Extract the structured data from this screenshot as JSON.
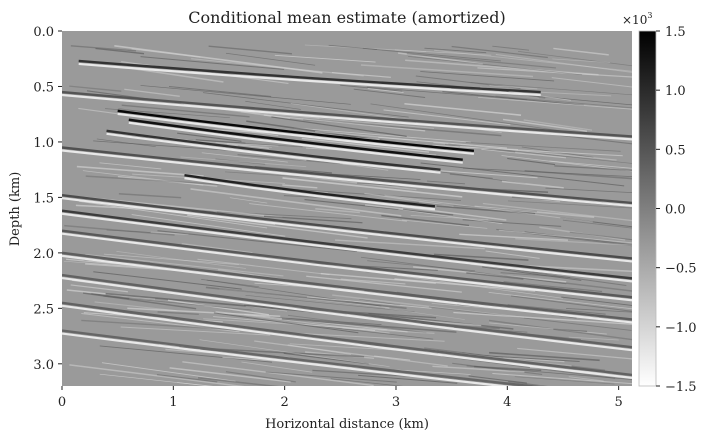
{
  "chart_data": {
    "type": "heatmap",
    "title": "Conditional mean estimate (amortized)",
    "xlabel": "Horizontal distance (km)",
    "ylabel": "Depth (km)",
    "xlim": [
      0,
      5.12
    ],
    "ylim": [
      3.2,
      0.0
    ],
    "xticks": [
      0,
      1,
      2,
      3,
      4,
      5
    ],
    "xtick_labels": [
      "0",
      "1",
      "2",
      "3",
      "4",
      "5"
    ],
    "yticks": [
      0.0,
      0.5,
      1.0,
      1.5,
      2.0,
      2.5,
      3.0
    ],
    "ytick_labels": [
      "0.0",
      "0.5",
      "1.0",
      "1.5",
      "2.0",
      "2.5",
      "3.0"
    ],
    "colorbar": {
      "colormap": "gray_r",
      "vmin": -1.5,
      "vmax": 1.5,
      "ticks": [
        -1.5,
        -1.0,
        -0.5,
        0.0,
        0.5,
        1.0,
        1.5
      ],
      "tick_labels": [
        "−1.5",
        "−1.0",
        "−0.5",
        "0.0",
        "0.5",
        "1.0",
        "1.5"
      ],
      "scale_label": "×10",
      "scale_exponent": "3"
    },
    "grid": false,
    "reflectors": [
      {
        "x0": 0.15,
        "z0": 0.27,
        "x1": 4.3,
        "z1": 0.55,
        "amp": 0.9
      },
      {
        "x0": 0.0,
        "z0": 0.55,
        "x1": 5.12,
        "z1": 0.95,
        "amp": 0.5
      },
      {
        "x0": 0.5,
        "z0": 0.72,
        "x1": 3.7,
        "z1": 1.08,
        "amp": 1.4
      },
      {
        "x0": 0.6,
        "z0": 0.8,
        "x1": 3.6,
        "z1": 1.16,
        "amp": 1.3
      },
      {
        "x0": 0.4,
        "z0": 0.9,
        "x1": 3.4,
        "z1": 1.25,
        "amp": 0.9
      },
      {
        "x0": 0.0,
        "z0": 1.05,
        "x1": 5.12,
        "z1": 1.55,
        "amp": 0.55
      },
      {
        "x0": 1.1,
        "z0": 1.3,
        "x1": 3.35,
        "z1": 1.58,
        "amp": 1.1
      },
      {
        "x0": 0.0,
        "z0": 1.48,
        "x1": 5.12,
        "z1": 2.05,
        "amp": 0.6
      },
      {
        "x0": 0.0,
        "z0": 1.62,
        "x1": 5.12,
        "z1": 2.23,
        "amp": 0.8
      },
      {
        "x0": 0.0,
        "z0": 1.8,
        "x1": 5.12,
        "z1": 2.4,
        "amp": 0.45
      },
      {
        "x0": 0.0,
        "z0": 2.0,
        "x1": 5.12,
        "z1": 2.6,
        "amp": 0.4
      },
      {
        "x0": 0.0,
        "z0": 2.2,
        "x1": 5.12,
        "z1": 2.85,
        "amp": 0.35
      },
      {
        "x0": 0.0,
        "z0": 2.45,
        "x1": 5.12,
        "z1": 3.1,
        "amp": 0.35
      },
      {
        "x0": 0.0,
        "z0": 2.7,
        "x1": 5.12,
        "z1": 3.3,
        "amp": 0.3
      }
    ]
  }
}
